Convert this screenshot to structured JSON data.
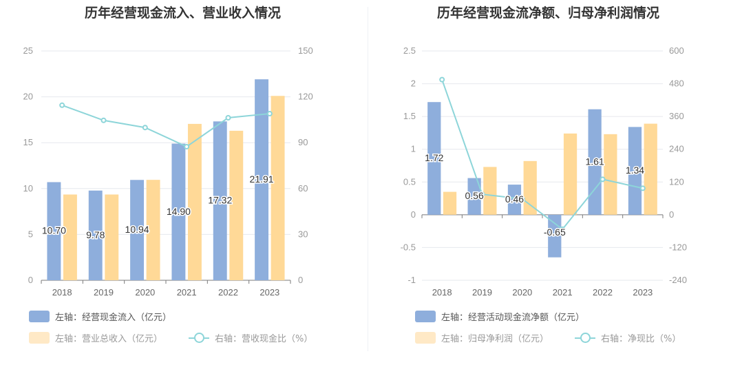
{
  "charts": [
    {
      "title": "历年经营现金流入、营业收入情况",
      "legend": {
        "bar1": "左轴：经营现金流入（亿元）",
        "bar2": "左轴：营业总收入（亿元）",
        "line": "右轴：营收现金比（%）"
      }
    },
    {
      "title": "历年经营现金流净额、归母净利润情况",
      "legend": {
        "bar1": "左轴：经营活动现金流净额（亿元）",
        "bar2": "左轴：归母净利润（亿元）",
        "line": "右轴：净现比（%）"
      }
    }
  ],
  "colors": {
    "bar1": "#8eaedc",
    "bar2": "#ffd997",
    "line": "#8dd5d9",
    "grid": "#e6e8ee",
    "axis_text": "#999999"
  },
  "chart_data": [
    {
      "type": "bar",
      "title": "历年经营现金流入、营业收入情况",
      "categories": [
        "2018",
        "2019",
        "2020",
        "2021",
        "2022",
        "2023"
      ],
      "series": [
        {
          "name": "经营现金流入（亿元）",
          "axis": "left",
          "type": "bar",
          "values": [
            10.7,
            9.78,
            10.94,
            14.9,
            17.32,
            21.91
          ],
          "labels": [
            "10.70",
            "9.78",
            "10.94",
            "14.90",
            "17.32",
            "21.91"
          ]
        },
        {
          "name": "营业总收入（亿元）",
          "axis": "left",
          "type": "bar",
          "values": [
            9.35,
            9.35,
            10.95,
            17.05,
            16.3,
            20.1
          ]
        },
        {
          "name": "营收现金比（%）",
          "axis": "right",
          "type": "line",
          "values": [
            114.5,
            104.6,
            99.9,
            87.4,
            106.3,
            109.0
          ]
        }
      ],
      "left_axis": {
        "ylim": [
          0,
          25
        ],
        "ticks": [
          "0",
          "5",
          "10",
          "15",
          "20",
          "25"
        ]
      },
      "right_axis": {
        "ylim": [
          0,
          150
        ],
        "ticks": [
          "0",
          "30",
          "60",
          "90",
          "120",
          "150"
        ]
      },
      "grid": true
    },
    {
      "type": "bar",
      "title": "历年经营现金流净额、归母净利润情况",
      "categories": [
        "2018",
        "2019",
        "2020",
        "2021",
        "2022",
        "2023"
      ],
      "series": [
        {
          "name": "经营活动现金流净额（亿元）",
          "axis": "left",
          "type": "bar",
          "values": [
            1.72,
            0.56,
            0.46,
            -0.65,
            1.61,
            1.34
          ],
          "labels": [
            "1.72",
            "0.56",
            "0.46",
            "-0.65",
            "1.61",
            "1.34"
          ]
        },
        {
          "name": "归母净利润（亿元）",
          "axis": "left",
          "type": "bar",
          "values": [
            0.35,
            0.73,
            0.82,
            1.24,
            1.23,
            1.39
          ]
        },
        {
          "name": "净现比（%）",
          "axis": "right",
          "type": "line",
          "values": [
            495,
            75,
            58,
            -53,
            130,
            97
          ]
        }
      ],
      "left_axis": {
        "ylim": [
          -1,
          2.5
        ],
        "ticks": [
          "-1",
          "-0.5",
          "0",
          "0.5",
          "1",
          "1.5",
          "2",
          "2.5"
        ]
      },
      "right_axis": {
        "ylim": [
          -240,
          600
        ],
        "ticks": [
          "-240",
          "-120",
          "0",
          "120",
          "240",
          "360",
          "480",
          "600"
        ]
      },
      "grid": true
    }
  ]
}
